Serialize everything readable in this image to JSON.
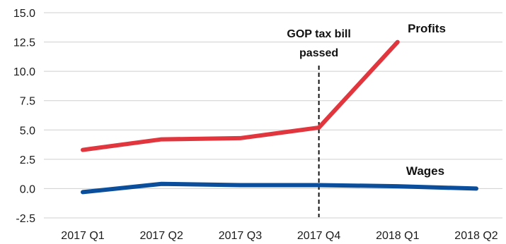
{
  "chart_data": {
    "type": "line",
    "categories": [
      "2017 Q1",
      "2017 Q2",
      "2017 Q3",
      "2017 Q4",
      "2018 Q1",
      "2018 Q2"
    ],
    "series": [
      {
        "name": "Profits",
        "values": [
          3.3,
          4.2,
          4.3,
          5.2,
          12.5,
          null
        ],
        "color": "#e2363f"
      },
      {
        "name": "Wages",
        "values": [
          -0.3,
          0.4,
          0.3,
          0.3,
          0.2,
          0.0
        ],
        "color": "#0b4f9c"
      }
    ],
    "yticks": [
      "15.0",
      "12.5",
      "10.0",
      "7.5",
      "5.0",
      "2.5",
      "0.0",
      "-2.5"
    ],
    "ylim": [
      -2.5,
      15.0
    ],
    "grid": "horizontal",
    "annotation": {
      "category": "2017 Q4",
      "line1": "GOP tax bill",
      "line2": "passed"
    },
    "title": "",
    "xlabel": "",
    "ylabel": ""
  }
}
